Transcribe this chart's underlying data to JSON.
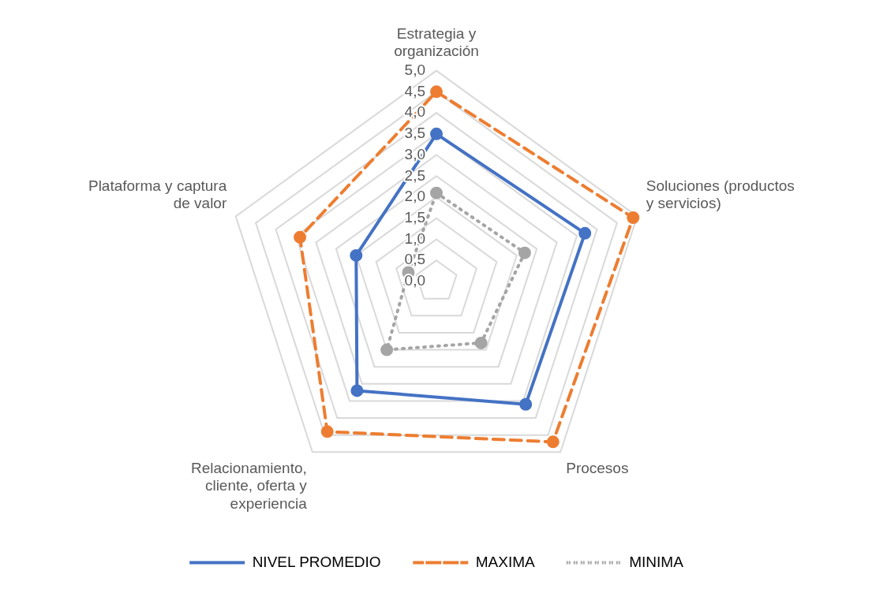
{
  "chart_data": {
    "type": "radar",
    "categories": [
      "Estrategia y organización",
      "Soluciones (productos y servicios)",
      "Procesos",
      "Relacionamiento, cliente, oferta y experiencia",
      "Plataforma y captura de valor"
    ],
    "series": [
      {
        "name": "NIVEL PROMEDIO",
        "color": "#4472c4",
        "line_style": "solid",
        "values": [
          3.5,
          3.7,
          3.6,
          3.2,
          2.0
        ]
      },
      {
        "name": "MAXIMA",
        "color": "#ed7d31",
        "line_style": "dashed",
        "values": [
          4.5,
          4.9,
          4.7,
          4.4,
          3.4
        ]
      },
      {
        "name": "MINIMA",
        "color": "#a5a5a5",
        "line_style": "dotted",
        "values": [
          2.1,
          2.2,
          1.8,
          2.0,
          0.7
        ]
      }
    ],
    "ylim": [
      0,
      5
    ],
    "yticks": [
      {
        "value": 0,
        "label": "0,0"
      },
      {
        "value": 0.5,
        "label": "0,5"
      },
      {
        "value": 1,
        "label": "1,0"
      },
      {
        "value": 1.5,
        "label": "1,5"
      },
      {
        "value": 2,
        "label": "2,0"
      },
      {
        "value": 2.5,
        "label": "2,5"
      },
      {
        "value": 3,
        "label": "3,0"
      },
      {
        "value": 3.5,
        "label": "3,5"
      },
      {
        "value": 4,
        "label": "4,0"
      },
      {
        "value": 4.5,
        "label": "4,5"
      },
      {
        "value": 5,
        "label": "5,0"
      }
    ],
    "grid": true,
    "legend": "bottom",
    "marker": "circle"
  }
}
